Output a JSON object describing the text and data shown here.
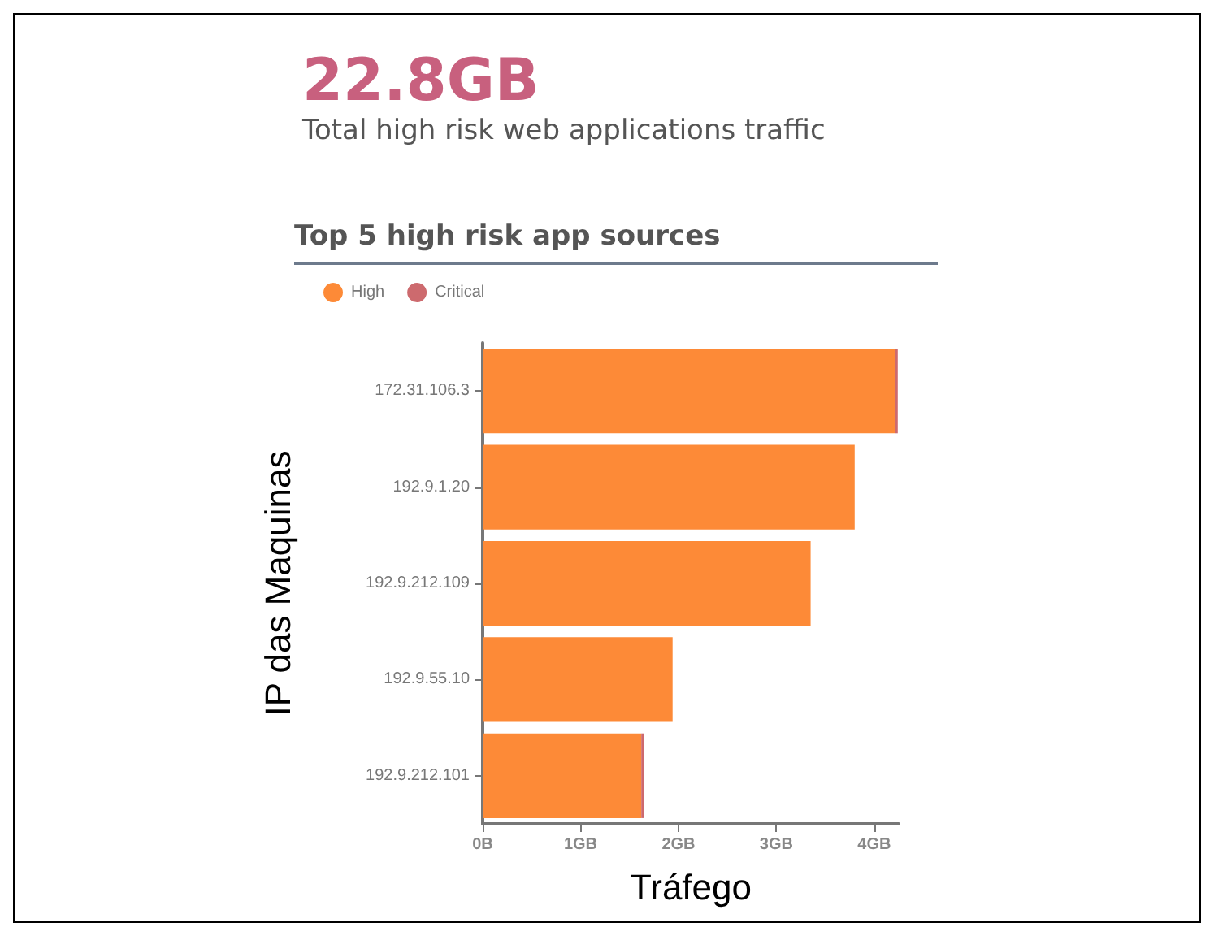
{
  "chart_data": {
    "type": "bar",
    "orientation": "horizontal",
    "stacked": true,
    "title": "22.8GB",
    "subtitle": "Total high risk web applications traffic",
    "annotations": [
      "Top 5 high risk app sources"
    ],
    "xlabel": "Tráfego",
    "ylabel": "IP das Maquinas",
    "categories": [
      "172.31.106.3",
      "192.9.1.20",
      "192.9.212.109",
      "192.9.55.10",
      "192.9.212.101"
    ],
    "series": [
      {
        "name": "High",
        "color": "#fd8a37",
        "values": [
          4.21,
          3.8,
          3.35,
          1.94,
          1.62
        ]
      },
      {
        "name": "Critical",
        "color": "#cd6a6e",
        "values": [
          0.03,
          0,
          0,
          0,
          0.03
        ]
      }
    ],
    "xlim": [
      0,
      4.25
    ],
    "xticks": [
      {
        "value": 0,
        "label": "0B"
      },
      {
        "value": 1,
        "label": "1GB"
      },
      {
        "value": 2,
        "label": "2GB"
      },
      {
        "value": 3,
        "label": "3GB"
      },
      {
        "value": 4,
        "label": "4GB"
      }
    ],
    "grid": false,
    "legend": "top left"
  }
}
